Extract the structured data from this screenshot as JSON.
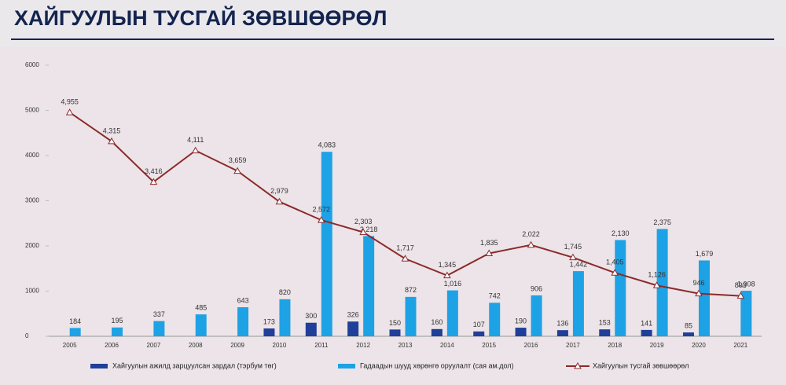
{
  "chart_data": {
    "type": "bar",
    "title": "ХАЙГУУЛЫН ТУСГАЙ ЗӨВШӨӨРӨЛ",
    "categories": [
      "2005",
      "2006",
      "2007",
      "2008",
      "2009",
      "2010",
      "2011",
      "2012",
      "2013",
      "2014",
      "2015",
      "2016",
      "2017",
      "2018",
      "2019",
      "2020",
      "2021"
    ],
    "series": [
      {
        "name": "Хайгуулын ажилд зарцуулсан зардал (тэрбум төг)",
        "type": "bar",
        "color": "#1f3f9a",
        "values": [
          null,
          null,
          null,
          null,
          null,
          173,
          300,
          326,
          150,
          160,
          107,
          190,
          136,
          153,
          141,
          85,
          null
        ]
      },
      {
        "name": "Гадаадын шууд хөрөнгө оруулалт (сая ам.дол)",
        "type": "bar",
        "color": "#1ea2e6",
        "values": [
          184,
          195,
          337,
          485,
          643,
          820,
          4083,
          2218,
          872,
          1016,
          742,
          906,
          1442,
          2130,
          2375,
          1679,
          1008
        ],
        "value_labels": [
          "184",
          "195",
          "337",
          "485",
          "643",
          "820",
          "4,083",
          "2,218",
          "872",
          "1,016",
          "742",
          "906",
          "1,442",
          "2,130",
          "2,375",
          "1,679",
          "1,008"
        ]
      },
      {
        "name": "Хайгуулын тусгай зөвшөөрөл",
        "type": "line",
        "color": "#8b2a2a",
        "values": [
          4955,
          4315,
          3416,
          4111,
          3659,
          2979,
          2572,
          2303,
          1717,
          1345,
          1835,
          2022,
          1745,
          1405,
          1126,
          946,
          893
        ],
        "value_labels": [
          "4,955",
          "4,315",
          "3,416",
          "4,111",
          "3,659",
          "2,979",
          "2,572",
          "2,303",
          "1,717",
          "1,345",
          "1,835",
          "2,022",
          "1,745",
          "1,405",
          "1,126",
          "946",
          "893"
        ]
      }
    ],
    "ylim": [
      0,
      6000
    ],
    "yticks": [
      0,
      1000,
      2000,
      3000,
      4000,
      5000,
      6000
    ]
  }
}
